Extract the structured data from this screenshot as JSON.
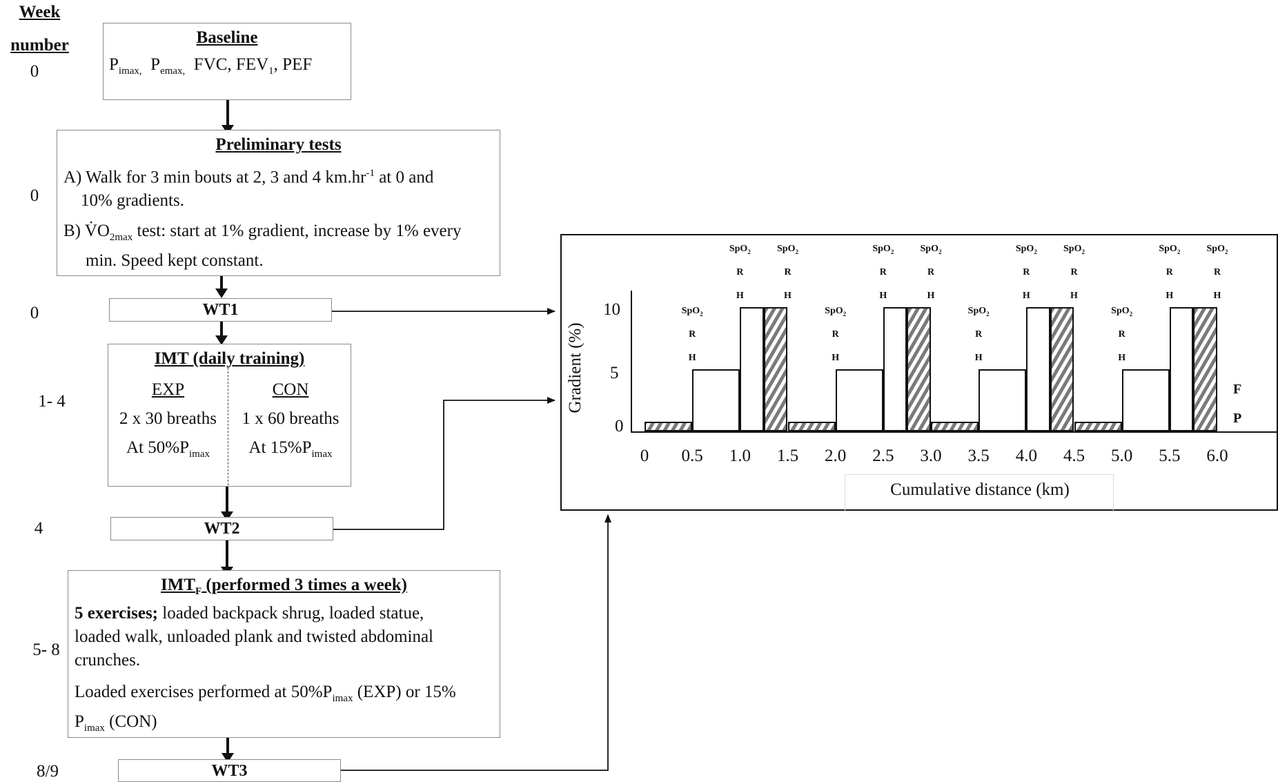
{
  "week_header": {
    "line1": "Week",
    "line2": "number"
  },
  "weeks": [
    "0",
    "0",
    "0",
    "1- 4",
    "4",
    "5- 8",
    "8/9"
  ],
  "baseline": {
    "title": "Baseline",
    "p1": "P",
    "s1": "imax,",
    "p2": "P",
    "s2": "emax,",
    "rest_a": "FVC, FEV",
    "rest_sub": "1",
    "rest_b": ", PEF"
  },
  "preliminary": {
    "title": "Preliminary tests",
    "a_line1": "A) Walk for 3 min bouts at 2, 3 and 4 km.hr",
    "a_sup": "-1",
    "a_line1_end": " at 0 and",
    "a_line2": "10% gradients.",
    "b_prefix": "B) ",
    "b_v": "V̇O",
    "b_sub": "2max",
    "b_line1": " test: start at 1% gradient, increase by 1% every",
    "b_line2": "min. Speed kept constant."
  },
  "wt1": "WT1",
  "imt": {
    "title": "IMT (daily training)",
    "exp_label": "EXP",
    "exp_breaths": "2 x 30 breaths",
    "exp_load": "At 50%P",
    "exp_sub": "imax",
    "con_label": "CON",
    "con_breaths": "1 x 60 breaths",
    "con_load": "At 15%P",
    "con_sub": "imax"
  },
  "wt2": "WT2",
  "imtf": {
    "title_a": "IMT",
    "title_sub": "F",
    "title_b": " (performed 3 times a week)",
    "bold_lead": "5 exercises;",
    "text1": " loaded backpack shrug, loaded statue,",
    "text2": "loaded walk, unloaded plank and twisted abdominal",
    "text3": "crunches.",
    "text4": "Loaded exercises performed at 50%P",
    "text4_sub": "imax",
    "text4_end": " (EXP) or 15%",
    "text5": "P",
    "text5_sub": "imax",
    "text5_end": " (CON)"
  },
  "wt3": "WT3",
  "chart_data": {
    "type": "bar",
    "ylabel": "Gradient (%)",
    "xlabel": "Cumulative distance (km)",
    "y_ticks": [
      "10",
      "5",
      "0"
    ],
    "x_ticks": [
      "0",
      "0.5",
      "1.0",
      "1.5",
      "2.0",
      "2.5",
      "3.0",
      "3.5",
      "4.0",
      "4.5",
      "5.0",
      "5.5",
      "6.0"
    ],
    "ylim": [
      0,
      10
    ],
    "xlim": [
      0,
      6.0
    ],
    "segments": [
      {
        "start": 0.0,
        "end": 0.5,
        "gradient": 0,
        "style": "hatched"
      },
      {
        "start": 0.5,
        "end": 1.0,
        "gradient": 5,
        "style": "open"
      },
      {
        "start": 1.0,
        "end": 1.25,
        "gradient": 10,
        "style": "open"
      },
      {
        "start": 1.25,
        "end": 1.5,
        "gradient": 10,
        "style": "hatched"
      },
      {
        "start": 1.5,
        "end": 2.0,
        "gradient": 0,
        "style": "hatched"
      },
      {
        "start": 2.0,
        "end": 2.5,
        "gradient": 5,
        "style": "open"
      },
      {
        "start": 2.5,
        "end": 2.75,
        "gradient": 10,
        "style": "open"
      },
      {
        "start": 2.75,
        "end": 3.0,
        "gradient": 10,
        "style": "hatched"
      },
      {
        "start": 3.0,
        "end": 3.5,
        "gradient": 0,
        "style": "hatched"
      },
      {
        "start": 3.5,
        "end": 4.0,
        "gradient": 5,
        "style": "open"
      },
      {
        "start": 4.0,
        "end": 4.25,
        "gradient": 10,
        "style": "open"
      },
      {
        "start": 4.25,
        "end": 4.5,
        "gradient": 10,
        "style": "hatched"
      },
      {
        "start": 4.5,
        "end": 5.0,
        "gradient": 0,
        "style": "hatched"
      },
      {
        "start": 5.0,
        "end": 5.5,
        "gradient": 5,
        "style": "open"
      },
      {
        "start": 5.5,
        "end": 5.75,
        "gradient": 10,
        "style": "open"
      },
      {
        "start": 5.75,
        "end": 6.0,
        "gradient": 10,
        "style": "hatched"
      }
    ],
    "measure_labels": {
      "spo2": "SpO",
      "spo2_sub": "2",
      "r": "R",
      "h": "H"
    },
    "measure_points_km": [
      0.5,
      1.0,
      1.5,
      2.0,
      2.5,
      3.0,
      3.5,
      4.0,
      4.5,
      5.0,
      5.5,
      6.0
    ],
    "right_labels": [
      "F",
      "P"
    ]
  }
}
